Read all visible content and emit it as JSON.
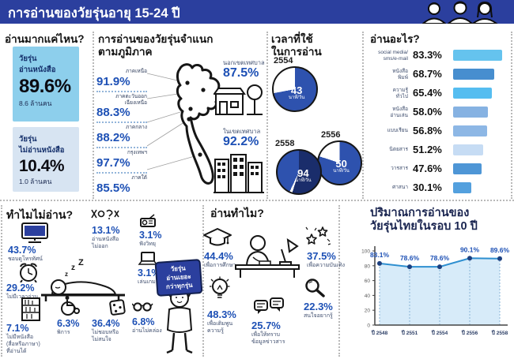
{
  "header": {
    "title": "การอ่านของวัยรุ่นอายุ 15-24 ปี",
    "bg_color": "#2b3f9e"
  },
  "how_much": {
    "title": "อ่านมากแค่ไหน?",
    "readers": {
      "label": "วัยรุ่น\nอ่านหนังสือ",
      "pct": "89.6%",
      "count": "8.6 ล้านคน",
      "box_color": "#8dcfec"
    },
    "non_readers": {
      "label": "วัยรุ่น\nไม่อ่านหนังสือ",
      "pct": "10.4%",
      "count": "1.0 ล้านคน",
      "box_color": "#d7e4f2"
    }
  },
  "by_region": {
    "title": "การอ่านของวัยรุ่นจำแนก\nตามภูมิภาค",
    "regions": [
      {
        "name": "ภาคเหนือ",
        "pct": "91.9%"
      },
      {
        "name": "ภาคตะวันออก\nเฉียงเหนือ",
        "pct": "88.3%"
      },
      {
        "name": "ภาคกลาง",
        "pct": "88.2%"
      },
      {
        "name": "กรุงเทพฯ",
        "pct": "97.7%"
      },
      {
        "name": "ภาคใต้",
        "pct": "85.5%"
      }
    ],
    "outside_municipality": {
      "name": "นอกเขตเทศบาล",
      "pct": "87.5%"
    },
    "inside_municipality": {
      "name": "ในเขตเทศบาล",
      "pct": "92.2%"
    }
  },
  "reading_time": {
    "title": "เวลาที่ใช้\nในการอ่าน",
    "pies": [
      {
        "year": "2554",
        "value": "43",
        "unit": "นาที/วัน",
        "segments": [
          {
            "color": "#2e52ae",
            "frac": 0.72
          },
          {
            "color": "#ffffff",
            "frac": 0.28
          }
        ]
      },
      {
        "year": "2556",
        "value": "50",
        "unit": "นาที/วัน",
        "segments": [
          {
            "color": "#2e52ae",
            "frac": 0.8
          },
          {
            "color": "#ffffff",
            "frac": 0.2
          }
        ]
      },
      {
        "year": "2558",
        "value": "94",
        "unit": "นาที/วัน",
        "segments": [
          {
            "color": "#1a2d6b",
            "frac": 0.55
          },
          {
            "color": "#ffffff",
            "frac": 0.02
          },
          {
            "color": "#2e52ae",
            "frac": 0.43
          }
        ]
      }
    ]
  },
  "what_read": {
    "title": "อ่านอะไร?",
    "items": [
      {
        "label": "social media/\nsms/e-mail",
        "pct": 83.3,
        "pct_label": "83.3%",
        "color": "#65c3ee"
      },
      {
        "label": "หนังสือ\nพิมพ์",
        "pct": 68.7,
        "pct_label": "68.7%",
        "color": "#478ecf"
      },
      {
        "label": "ความรู้\nทั่วไป",
        "pct": 65.4,
        "pct_label": "65.4%",
        "color": "#55bdf0"
      },
      {
        "label": "หนังสือ\nอ่านเล่น",
        "pct": 58.0,
        "pct_label": "58.0%",
        "color": "#86b2e2"
      },
      {
        "label": "แบบเรียน",
        "pct": 56.8,
        "pct_label": "56.8%",
        "color": "#8db7e5"
      },
      {
        "label": "นิตยสาร",
        "pct": 51.2,
        "pct_label": "51.2%",
        "color": "#c6dcf4"
      },
      {
        "label": "วารสาร",
        "pct": 47.6,
        "pct_label": "47.6%",
        "color": "#4e96d6"
      },
      {
        "label": "ศาสนา",
        "pct": 30.1,
        "pct_label": "30.1%",
        "color": "#53a0de"
      }
    ]
  },
  "why_not_read": {
    "title": "ทำไมไม่อ่าน?",
    "items": [
      {
        "pct": "43.7%",
        "label": "ชอบดูโทรทัศน์",
        "icon": "tv-icon"
      },
      {
        "pct": "13.1%",
        "label": "อ่านหนังสือ\nไม่ออก",
        "icon": "scrambled-letters-icon"
      },
      {
        "pct": "3.1%",
        "label": "ฟังวิทยุ",
        "icon": "radio-icon"
      },
      {
        "pct": "29.2%",
        "label": "ไม่มีเวลาอ่าน",
        "icon": "alarm-clock-icon"
      },
      {
        "pct": "3.1%",
        "label": "เล่นเกม",
        "icon": "laptop-icon"
      },
      {
        "pct": "7.1%",
        "label": "ไม่มีหนังสือ\n(สื่อหรือภาษา)\nที่อ่านได้",
        "icon": "bookshelf-icon"
      },
      {
        "pct": "6.3%",
        "label": "พิการ",
        "icon": "wheelchair-icon"
      },
      {
        "pct": "36.4%",
        "label": "ไม่ชอบหรือ\nไม่สนใจ",
        "icon": "dice-icon"
      },
      {
        "pct": "6.8%",
        "label": "อ่านไม่คล่อง",
        "icon": "glasses-icon"
      }
    ],
    "sign_text": "วัยรุ่น\nอ่านเยอะ\nกว่าทุกรุ่น"
  },
  "why_read": {
    "title": "อ่านทำไม?",
    "items": [
      {
        "pct": "44.4%",
        "label": "เพื่อการศึกษา",
        "icon": "graduation-cap-icon"
      },
      {
        "pct": "37.5%",
        "label": "เพื่อความบันเทิง",
        "icon": "stars-icon"
      },
      {
        "pct": "48.3%",
        "label": "เพื่อเติมพูน\nความรู้",
        "icon": "lightbulb-icon"
      },
      {
        "pct": "25.7%",
        "label": "เพื่อให้ทราบ\nข้อมูลข่าวสาร",
        "icon": "chat-bubbles-icon"
      },
      {
        "pct": "22.3%",
        "label": "สนใจอยากรู้",
        "icon": "magnifier-icon"
      }
    ]
  },
  "ten_years": {
    "title": "ปริมาณการอ่านของ\nวัยรุ่นไทยในรอบ 10 ปี"
  },
  "chart_data": [
    {
      "type": "bar",
      "title": "อ่านอะไร?",
      "orientation": "horizontal",
      "unit": "%",
      "categories": [
        "social media/sms/e-mail",
        "หนังสือพิมพ์",
        "ความรู้ทั่วไป",
        "หนังสืออ่านเล่น",
        "แบบเรียน",
        "นิตยสาร",
        "วารสาร",
        "ศาสนา"
      ],
      "values": [
        83.3,
        68.7,
        65.4,
        58.0,
        56.8,
        51.2,
        47.6,
        30.1
      ]
    },
    {
      "type": "pie",
      "title": "เวลาที่ใช้ในการอ่าน",
      "series": [
        {
          "name": "2554",
          "value": 43,
          "unit": "นาที/วัน"
        },
        {
          "name": "2556",
          "value": 50,
          "unit": "นาที/วัน"
        },
        {
          "name": "2558",
          "value": 94,
          "unit": "นาที/วัน"
        }
      ]
    },
    {
      "type": "line",
      "title": "ปริมาณการอ่านของวัยรุ่นไทยในรอบ 10 ปี",
      "x": [
        "ปี 2548",
        "ปี 2551",
        "ปี 2554",
        "ปี 2556",
        "ปี 2558"
      ],
      "values": [
        83.1,
        78.6,
        78.6,
        90.1,
        89.6
      ],
      "ylim": [
        0,
        100
      ],
      "yticks": [
        0,
        20,
        40,
        60,
        80,
        100
      ],
      "unit": "%",
      "line_color": "#2e8fd0",
      "area_color": "#d7ebf9",
      "dot_color": "#1c3f7f",
      "label_color": "#1d50b5"
    }
  ]
}
